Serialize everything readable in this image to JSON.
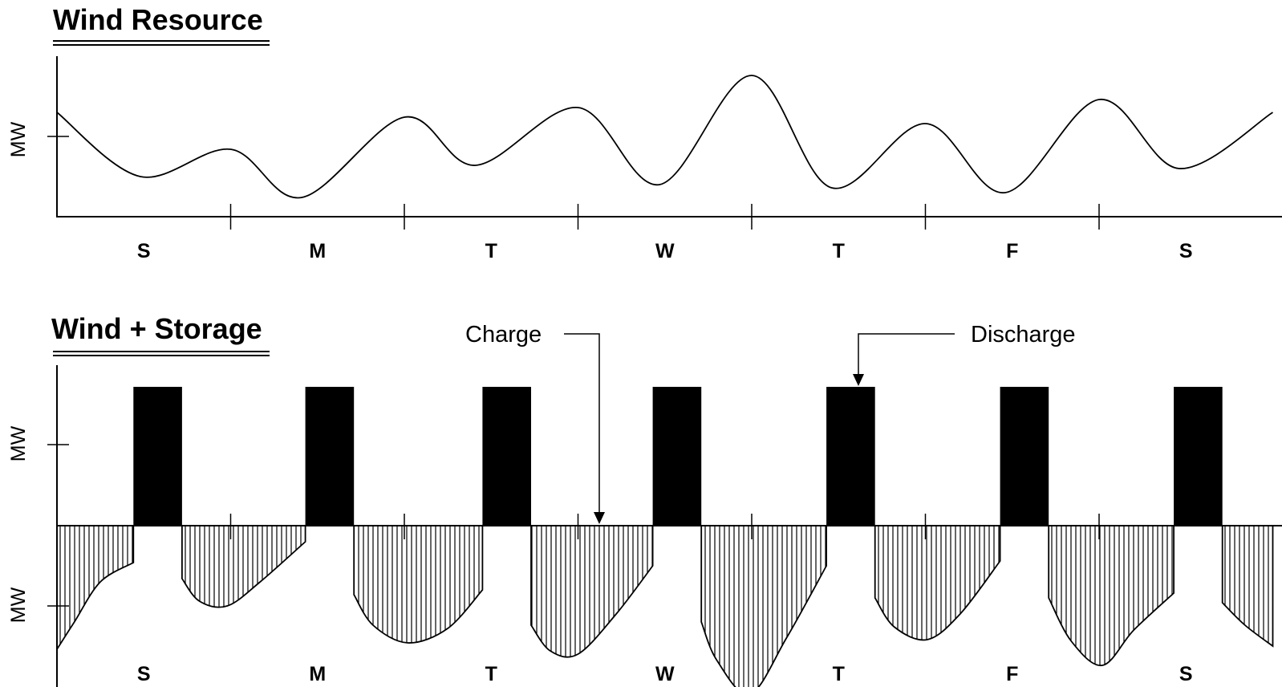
{
  "chart_data": [
    {
      "type": "line",
      "title": "Wind Resource",
      "ylabel": "MW",
      "days": [
        "S",
        "M",
        "T",
        "W",
        "T",
        "F",
        "S"
      ],
      "x": [
        0.0,
        0.48,
        1.0,
        1.41,
        2.0,
        2.41,
        3.0,
        3.47,
        4.0,
        4.46,
        5.0,
        5.46,
        6.0,
        6.46,
        7.0
      ],
      "y": [
        0.65,
        0.25,
        0.42,
        0.12,
        0.62,
        0.32,
        0.68,
        0.2,
        0.88,
        0.18,
        0.58,
        0.15,
        0.73,
        0.3,
        0.65
      ],
      "grid": false
    },
    {
      "type": "bar",
      "title": "Wind + Storage",
      "ylabel_upper": "MW",
      "ylabel_lower": "MW",
      "days": [
        "S",
        "M",
        "T",
        "W",
        "T",
        "F",
        "S"
      ],
      "annotations": [
        "Charge",
        "Discharge"
      ],
      "series": [
        {
          "name": "Discharge",
          "x_start": [
            0.44,
            1.43,
            2.45,
            3.43,
            4.43,
            5.43,
            6.43
          ],
          "x_end": [
            0.72,
            1.71,
            2.73,
            3.71,
            4.71,
            5.71,
            6.71
          ],
          "values": [
            1.0,
            1.0,
            1.0,
            1.0,
            1.0,
            1.0,
            1.0
          ]
        },
        {
          "name": "Charge",
          "segments": [
            {
              "x": [
                0.0,
                0.1,
                0.25,
                0.44
              ],
              "y": [
                -0.77,
                -0.6,
                -0.35,
                -0.23
              ]
            },
            {
              "x": [
                0.72,
                0.82,
                0.98,
                1.17,
                1.43
              ],
              "y": [
                -0.33,
                -0.47,
                -0.5,
                -0.35,
                -0.1
              ]
            },
            {
              "x": [
                1.71,
                1.82,
                2.02,
                2.25,
                2.45
              ],
              "y": [
                -0.43,
                -0.62,
                -0.73,
                -0.64,
                -0.4
              ]
            },
            {
              "x": [
                2.73,
                2.84,
                3.0,
                3.22,
                3.43
              ],
              "y": [
                -0.62,
                -0.78,
                -0.8,
                -0.55,
                -0.25
              ]
            },
            {
              "x": [
                3.71,
                3.8,
                3.99,
                4.2,
                4.43
              ],
              "y": [
                -0.6,
                -0.84,
                -1.05,
                -0.7,
                -0.25
              ]
            },
            {
              "x": [
                4.71,
                4.82,
                5.01,
                5.2,
                5.43
              ],
              "y": [
                -0.45,
                -0.63,
                -0.71,
                -0.55,
                -0.22
              ]
            },
            {
              "x": [
                5.71,
                5.84,
                6.02,
                6.2,
                6.43
              ],
              "y": [
                -0.45,
                -0.72,
                -0.87,
                -0.65,
                -0.42
              ]
            },
            {
              "x": [
                6.71,
                6.84,
                7.0
              ],
              "y": [
                -0.48,
                -0.62,
                -0.75
              ]
            }
          ]
        }
      ],
      "grid": false
    }
  ]
}
